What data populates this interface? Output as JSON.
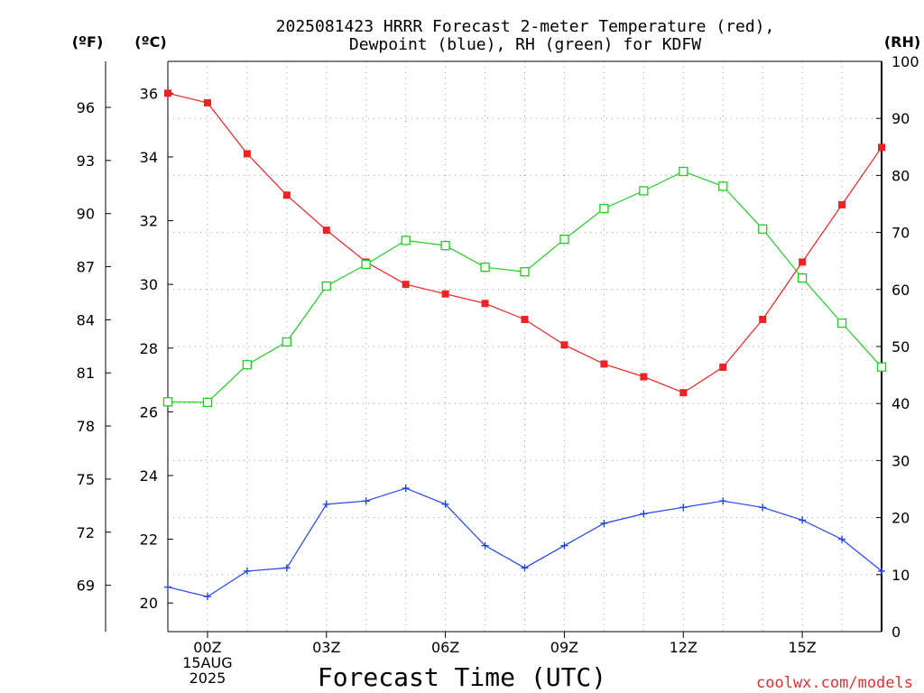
{
  "chart_data": {
    "type": "line",
    "title_line1": "2025081423 HRRR Forecast 2-meter Temperature (red),",
    "title_line2": "Dewpoint (blue), RH (green) for KDFW",
    "xlabel": "Forecast Time (UTC)",
    "watermark": "coolwx.com/models",
    "unit_f": "(ºF)",
    "unit_c": "(ºC)",
    "unit_rh": "(RH)",
    "x_hours": [
      -1,
      0,
      1,
      2,
      3,
      4,
      5,
      6,
      7,
      8,
      9,
      10,
      11,
      12,
      13,
      14,
      15,
      16,
      17
    ],
    "x_ticks": [
      {
        "hour": 0,
        "lines": [
          "00Z",
          "15AUG",
          "2025"
        ]
      },
      {
        "hour": 3,
        "lines": [
          "03Z"
        ]
      },
      {
        "hour": 6,
        "lines": [
          "06Z"
        ]
      },
      {
        "hour": 9,
        "lines": [
          "09Z"
        ]
      },
      {
        "hour": 12,
        "lines": [
          "12Z"
        ]
      },
      {
        "hour": 15,
        "lines": [
          "15Z"
        ]
      }
    ],
    "xlim": [
      -1,
      17
    ],
    "y_celsius": {
      "lim": [
        19.1,
        37.0
      ],
      "ticks": [
        "20",
        "22",
        "24",
        "26",
        "28",
        "30",
        "32",
        "34",
        "36"
      ]
    },
    "y_fahrenheit": {
      "ticks": [
        "69",
        "72",
        "75",
        "78",
        "81",
        "84",
        "87",
        "90",
        "93",
        "96"
      ]
    },
    "y_rh": {
      "lim": [
        0,
        100
      ],
      "ticks": [
        "0",
        "10",
        "20",
        "30",
        "40",
        "50",
        "60",
        "70",
        "80",
        "90",
        "100"
      ]
    },
    "grid": true,
    "series": [
      {
        "name": "Temperature",
        "color": "#ee2222",
        "marker": "filled-square",
        "axis": "celsius",
        "values": [
          36.0,
          35.7,
          34.1,
          32.8,
          31.7,
          30.7,
          30.0,
          29.7,
          29.4,
          28.9,
          28.1,
          27.5,
          27.1,
          26.6,
          27.4,
          28.9,
          30.7,
          32.5,
          34.3
        ]
      },
      {
        "name": "Dewpoint",
        "color": "#2244ee",
        "marker": "plus",
        "axis": "celsius",
        "values": [
          20.5,
          20.2,
          21.0,
          21.1,
          23.1,
          23.2,
          23.6,
          23.1,
          21.8,
          21.1,
          21.8,
          22.5,
          22.8,
          23.0,
          23.2,
          23.0,
          22.6,
          22.0,
          21.0
        ]
      },
      {
        "name": "RH",
        "color": "#22cc22",
        "marker": "open-square",
        "axis": "rh",
        "values": [
          40.3,
          40.2,
          46.8,
          50.8,
          60.6,
          64.4,
          68.6,
          67.7,
          63.9,
          63.1,
          68.8,
          74.2,
          77.3,
          80.7,
          78.1,
          70.6,
          62.0,
          54.1,
          46.4
        ]
      }
    ]
  }
}
